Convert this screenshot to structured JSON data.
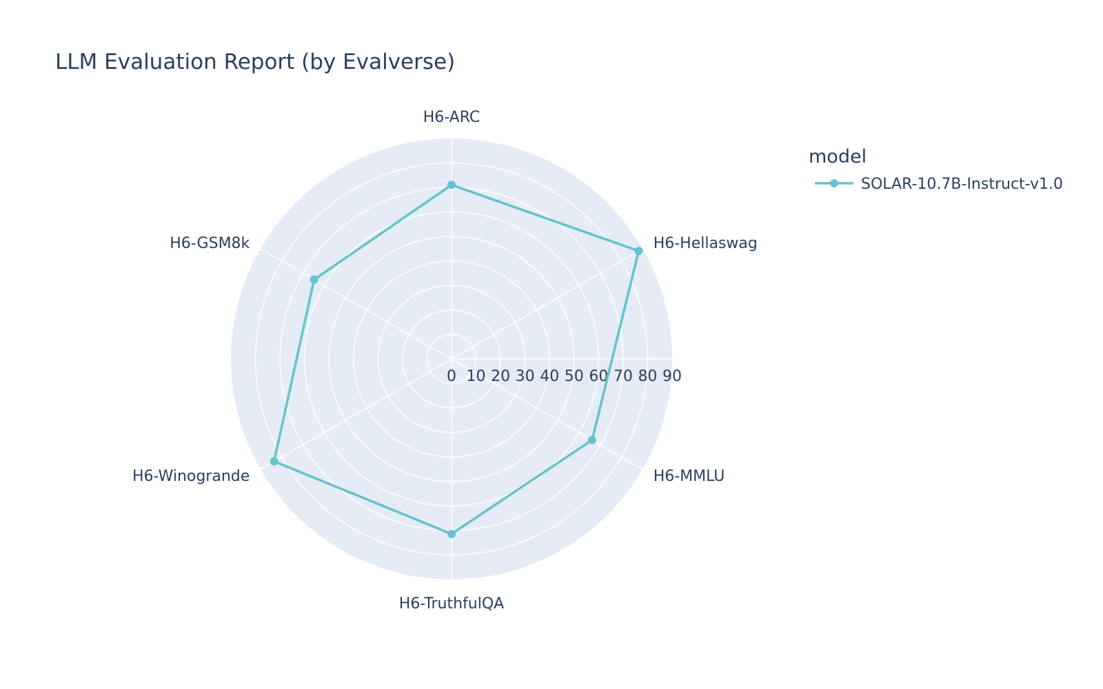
{
  "chart_data": {
    "type": "radar",
    "title": "LLM Evaluation Report (by Evalverse)",
    "legend_title": "model",
    "legend_position": "top-right",
    "categories": [
      "H6-ARC",
      "H6-Hellaswag",
      "H6-MMLU",
      "H6-TruthfulQA",
      "H6-Winogrande",
      "H6-GSM8k"
    ],
    "radial_range": [
      0,
      90
    ],
    "radial_ticks": [
      0,
      10,
      20,
      30,
      40,
      50,
      60,
      70,
      80,
      90
    ],
    "grid": true,
    "series": [
      {
        "name": "SOLAR-10.7B-Instruct-v1.0",
        "color": "#66c2cb",
        "values": [
          71.08,
          88.16,
          66.21,
          71.43,
          83.58,
          64.75
        ]
      }
    ],
    "colors": {
      "polar_bg": "#e5ecf6",
      "grid": "#ffffff",
      "text": "#2a3f5f"
    }
  }
}
